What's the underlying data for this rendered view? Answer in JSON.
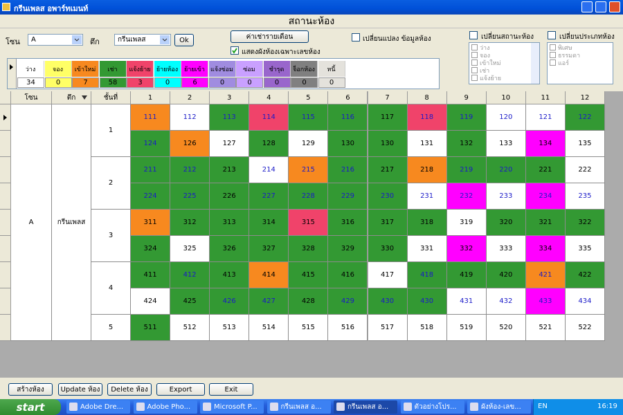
{
  "window": {
    "title": "กรีนเพลส อพาร์ทเมนท์"
  },
  "header": {
    "title": "สถานะห้อง"
  },
  "filters": {
    "zone_label": "โซน",
    "zone": "A",
    "building_label": "ตึก",
    "building": "กรีนเพลส",
    "ok": "Ok",
    "monthly_rent": "ค่าเช่ารายเดือน",
    "show_numbers_only": {
      "label": "แสดงผังห้องเฉพาะเลขห้อง",
      "checked": true
    },
    "edit_room": {
      "label": "เปลี่ยนแปลง ข้อมูลห้อง",
      "checked": false
    }
  },
  "status_panel": {
    "label": "เปลี่ยนสถานะห้อง",
    "checked": false,
    "items": [
      "ว่าง",
      "จอง",
      "เข้าใหม่",
      "เช่า",
      "แจ้งย้าย"
    ]
  },
  "type_panel": {
    "label": "เปลี่ยนประเภทห้อง",
    "checked": false,
    "items": [
      "พิเศษ",
      "ธรรมดา",
      "แอร์"
    ]
  },
  "legend": [
    {
      "label": "ว่าง",
      "color": "#ffffff",
      "count": 34
    },
    {
      "label": "จอง",
      "color": "#ffff66",
      "count": 0
    },
    {
      "label": "เข้าใหม่",
      "color": "#f7891f",
      "count": 7
    },
    {
      "label": "เช่า",
      "color": "#339933",
      "count": 58
    },
    {
      "label": "แจ้งย้าย",
      "color": "#f0436a",
      "count": 3
    },
    {
      "label": "ย้ายห้อง",
      "color": "#00ffff",
      "count": 0
    },
    {
      "label": "ย้ายเข้า",
      "color": "#ff00ff",
      "count": 6
    },
    {
      "label": "แจ้งซ่อม",
      "color": "#a08ce0",
      "count": 0
    },
    {
      "label": "ซ่อม",
      "color": "#c9a0ff",
      "count": 0
    },
    {
      "label": "ชำรุด",
      "color": "#9966cc",
      "count": 0
    },
    {
      "label": "จ็อกห้อง",
      "color": "#808080",
      "count": 0
    },
    {
      "label": "หนี้",
      "color": "#e4e2dc",
      "count": 0
    }
  ],
  "grid": {
    "columns": [
      "โซน",
      "ตึก",
      "ชั้นที่"
    ],
    "room_columns": [
      1,
      2,
      3,
      4,
      5,
      6,
      7,
      8,
      9,
      10,
      11,
      12
    ],
    "zone": "A",
    "building": "กรีนเพลส",
    "floors": [
      {
        "floor": 1,
        "rows": [
          [
            {
              "label": 111,
              "color": "#f7891f",
              "ink": "#1a1ac8"
            },
            {
              "label": 112,
              "color": "#ffffff",
              "ink": "#1a1ac8"
            },
            {
              "label": 113,
              "color": "#339933",
              "ink": "#1a1ac8"
            },
            {
              "label": 114,
              "color": "#f0436a",
              "ink": "#1a1ac8"
            },
            {
              "label": 115,
              "color": "#339933",
              "ink": "#1a1ac8"
            },
            {
              "label": 116,
              "color": "#339933",
              "ink": "#1a1ac8"
            },
            {
              "label": 117,
              "color": "#339933",
              "ink": "#000000"
            },
            {
              "label": 118,
              "color": "#f0436a",
              "ink": "#1a1ac8"
            },
            {
              "label": 119,
              "color": "#339933",
              "ink": "#1a1ac8"
            },
            {
              "label": 120,
              "color": "#ffffff",
              "ink": "#1a1ac8"
            },
            {
              "label": 121,
              "color": "#ffffff",
              "ink": "#1a1ac8"
            },
            {
              "label": 122,
              "color": "#339933",
              "ink": "#1a1ac8"
            }
          ],
          [
            {
              "label": 124,
              "color": "#339933",
              "ink": "#1a1ac8"
            },
            {
              "label": 126,
              "color": "#f7891f",
              "ink": "#000000"
            },
            {
              "label": 127,
              "color": "#ffffff",
              "ink": "#000000"
            },
            {
              "label": 128,
              "color": "#339933",
              "ink": "#000000"
            },
            {
              "label": 129,
              "color": "#ffffff",
              "ink": "#000000"
            },
            {
              "label": 130,
              "color": "#339933",
              "ink": "#000000"
            },
            {
              "label": 130,
              "color": "#339933",
              "ink": "#000000"
            },
            {
              "label": 131,
              "color": "#ffffff",
              "ink": "#000000"
            },
            {
              "label": 132,
              "color": "#339933",
              "ink": "#000000"
            },
            {
              "label": 133,
              "color": "#ffffff",
              "ink": "#000000"
            },
            {
              "label": 134,
              "color": "#ff00ff",
              "ink": "#000000"
            },
            {
              "label": 135,
              "color": "#ffffff",
              "ink": "#000000"
            }
          ]
        ]
      },
      {
        "floor": 2,
        "rows": [
          [
            {
              "label": 211,
              "color": "#339933",
              "ink": "#1a1ac8"
            },
            {
              "label": 212,
              "color": "#339933",
              "ink": "#1a1ac8"
            },
            {
              "label": 213,
              "color": "#339933",
              "ink": "#000000"
            },
            {
              "label": 214,
              "color": "#ffffff",
              "ink": "#1a1ac8"
            },
            {
              "label": 215,
              "color": "#f7891f",
              "ink": "#1a1ac8"
            },
            {
              "label": 216,
              "color": "#339933",
              "ink": "#1a1ac8"
            },
            {
              "label": 217,
              "color": "#339933",
              "ink": "#000000"
            },
            {
              "label": 218,
              "color": "#f7891f",
              "ink": "#000000"
            },
            {
              "label": 219,
              "color": "#339933",
              "ink": "#1a1ac8"
            },
            {
              "label": 220,
              "color": "#339933",
              "ink": "#1a1ac8"
            },
            {
              "label": 221,
              "color": "#339933",
              "ink": "#000000"
            },
            {
              "label": 222,
              "color": "#ffffff",
              "ink": "#000000"
            }
          ],
          [
            {
              "label": 224,
              "color": "#339933",
              "ink": "#1a1ac8"
            },
            {
              "label": 225,
              "color": "#339933",
              "ink": "#1a1ac8"
            },
            {
              "label": 226,
              "color": "#339933",
              "ink": "#000000"
            },
            {
              "label": 227,
              "color": "#339933",
              "ink": "#1a1ac8"
            },
            {
              "label": 228,
              "color": "#339933",
              "ink": "#1a1ac8"
            },
            {
              "label": 229,
              "color": "#339933",
              "ink": "#1a1ac8"
            },
            {
              "label": 230,
              "color": "#339933",
              "ink": "#1a1ac8"
            },
            {
              "label": 231,
              "color": "#ffffff",
              "ink": "#1a1ac8"
            },
            {
              "label": 232,
              "color": "#ff00ff",
              "ink": "#1a1ac8"
            },
            {
              "label": 233,
              "color": "#ffffff",
              "ink": "#1a1ac8"
            },
            {
              "label": 234,
              "color": "#ff00ff",
              "ink": "#1a1ac8"
            },
            {
              "label": 235,
              "color": "#ffffff",
              "ink": "#1a1ac8"
            }
          ]
        ]
      },
      {
        "floor": 3,
        "rows": [
          [
            {
              "label": 311,
              "color": "#f7891f",
              "ink": "#000000"
            },
            {
              "label": 312,
              "color": "#339933",
              "ink": "#000000"
            },
            {
              "label": 313,
              "color": "#339933",
              "ink": "#000000"
            },
            {
              "label": 314,
              "color": "#339933",
              "ink": "#000000"
            },
            {
              "label": 315,
              "color": "#f0436a",
              "ink": "#000000"
            },
            {
              "label": 316,
              "color": "#339933",
              "ink": "#000000"
            },
            {
              "label": 317,
              "color": "#339933",
              "ink": "#000000"
            },
            {
              "label": 318,
              "color": "#339933",
              "ink": "#000000"
            },
            {
              "label": 319,
              "color": "#ffffff",
              "ink": "#000000"
            },
            {
              "label": 320,
              "color": "#339933",
              "ink": "#000000"
            },
            {
              "label": 321,
              "color": "#339933",
              "ink": "#000000"
            },
            {
              "label": 322,
              "color": "#339933",
              "ink": "#000000"
            }
          ],
          [
            {
              "label": 324,
              "color": "#339933",
              "ink": "#000000"
            },
            {
              "label": 325,
              "color": "#ffffff",
              "ink": "#000000"
            },
            {
              "label": 326,
              "color": "#339933",
              "ink": "#000000"
            },
            {
              "label": 327,
              "color": "#339933",
              "ink": "#000000"
            },
            {
              "label": 328,
              "color": "#339933",
              "ink": "#000000"
            },
            {
              "label": 329,
              "color": "#339933",
              "ink": "#000000"
            },
            {
              "label": 330,
              "color": "#339933",
              "ink": "#000000"
            },
            {
              "label": 331,
              "color": "#ffffff",
              "ink": "#000000"
            },
            {
              "label": 332,
              "color": "#ff00ff",
              "ink": "#000000"
            },
            {
              "label": 333,
              "color": "#ffffff",
              "ink": "#000000"
            },
            {
              "label": 334,
              "color": "#ff00ff",
              "ink": "#000000"
            },
            {
              "label": 335,
              "color": "#ffffff",
              "ink": "#000000"
            }
          ]
        ]
      },
      {
        "floor": 4,
        "rows": [
          [
            {
              "label": 411,
              "color": "#339933",
              "ink": "#000000"
            },
            {
              "label": 412,
              "color": "#339933",
              "ink": "#1a1ac8"
            },
            {
              "label": 413,
              "color": "#339933",
              "ink": "#000000"
            },
            {
              "label": 414,
              "color": "#f7891f",
              "ink": "#000000"
            },
            {
              "label": 415,
              "color": "#339933",
              "ink": "#000000"
            },
            {
              "label": 416,
              "color": "#339933",
              "ink": "#000000"
            },
            {
              "label": 417,
              "color": "#ffffff",
              "ink": "#000000"
            },
            {
              "label": 418,
              "color": "#339933",
              "ink": "#1a1ac8"
            },
            {
              "label": 419,
              "color": "#339933",
              "ink": "#000000"
            },
            {
              "label": 420,
              "color": "#339933",
              "ink": "#000000"
            },
            {
              "label": 421,
              "color": "#f7891f",
              "ink": "#1a1ac8"
            },
            {
              "label": 422,
              "color": "#339933",
              "ink": "#000000"
            }
          ],
          [
            {
              "label": 424,
              "color": "#ffffff",
              "ink": "#000000"
            },
            {
              "label": 425,
              "color": "#339933",
              "ink": "#000000"
            },
            {
              "label": 426,
              "color": "#339933",
              "ink": "#1a1ac8"
            },
            {
              "label": 427,
              "color": "#339933",
              "ink": "#1a1ac8"
            },
            {
              "label": 428,
              "color": "#339933",
              "ink": "#000000"
            },
            {
              "label": 429,
              "color": "#339933",
              "ink": "#1a1ac8"
            },
            {
              "label": 430,
              "color": "#339933",
              "ink": "#1a1ac8"
            },
            {
              "label": 430,
              "color": "#339933",
              "ink": "#1a1ac8"
            },
            {
              "label": 431,
              "color": "#ffffff",
              "ink": "#1a1ac8"
            },
            {
              "label": 432,
              "color": "#ffffff",
              "ink": "#1a1ac8"
            },
            {
              "label": 433,
              "color": "#ff00ff",
              "ink": "#1a1ac8"
            },
            {
              "label": 434,
              "color": "#ffffff",
              "ink": "#1a1ac8"
            }
          ]
        ]
      },
      {
        "floor": 5,
        "rows": [
          [
            {
              "label": 511,
              "color": "#339933",
              "ink": "#000000"
            },
            {
              "label": 512,
              "color": "#ffffff",
              "ink": "#000000"
            },
            {
              "label": 513,
              "color": "#ffffff",
              "ink": "#000000"
            },
            {
              "label": 514,
              "color": "#ffffff",
              "ink": "#000000"
            },
            {
              "label": 515,
              "color": "#ffffff",
              "ink": "#000000"
            },
            {
              "label": 516,
              "color": "#ffffff",
              "ink": "#000000"
            },
            {
              "label": 517,
              "color": "#ffffff",
              "ink": "#000000"
            },
            {
              "label": 518,
              "color": "#ffffff",
              "ink": "#000000"
            },
            {
              "label": 519,
              "color": "#ffffff",
              "ink": "#000000"
            },
            {
              "label": 520,
              "color": "#ffffff",
              "ink": "#000000"
            },
            {
              "label": 521,
              "color": "#ffffff",
              "ink": "#000000"
            },
            {
              "label": 522,
              "color": "#ffffff",
              "ink": "#000000"
            }
          ]
        ]
      }
    ]
  },
  "buttons": [
    "สร้างห้อง",
    "Update ห้อง",
    "Delete ห้อง",
    "Export",
    "Exit"
  ],
  "taskbar": {
    "start": "start",
    "items": [
      "Adobe Dre...",
      "Adobe Pho...",
      "Microsoft P...",
      "กรีนเพลส อ...",
      "กรีนเพลส อ...",
      "ตัวอย่างโปร...",
      "ผังห้อง-เลข..."
    ],
    "lang": "EN",
    "clock": "16:19"
  }
}
